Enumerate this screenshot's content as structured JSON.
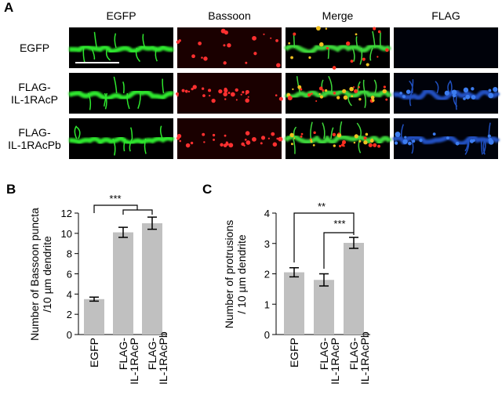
{
  "panel_a": {
    "label": "A",
    "columns": [
      "EGFP",
      "Bassoon",
      "Merge",
      "FLAG"
    ],
    "rows": [
      "EGFP",
      "FLAG-\nIL-1RAcP",
      "FLAG-\nIL-1RAcPb"
    ]
  },
  "chart_data": [
    {
      "type": "bar",
      "panel_label": "B",
      "y_label": "Number of Bassoon puncta\n/10 µm dendrite",
      "categories": [
        "EGFP",
        "FLAG-\nIL-1RAcP",
        "FLAG-\nIL-1RAcPb"
      ],
      "values": [
        3.5,
        10.1,
        11.0
      ],
      "errors": [
        0.2,
        0.5,
        0.6
      ],
      "color": "#c0c0c0",
      "ylim": [
        0,
        12
      ],
      "yticks": [
        0,
        2,
        4,
        6,
        8,
        10,
        12
      ],
      "annotations": [
        "***"
      ]
    },
    {
      "type": "bar",
      "panel_label": "C",
      "y_label": "Number of protrusions\n/ 10 µm dendrite",
      "categories": [
        "EGFP",
        "FLAG-\nIL-1RAcP",
        "FLAG-\nIL-1RAcPb"
      ],
      "values": [
        2.05,
        1.8,
        3.02
      ],
      "errors": [
        0.15,
        0.2,
        0.18
      ],
      "color": "#c0c0c0",
      "ylim": [
        0,
        4
      ],
      "yticks": [
        0,
        1,
        2,
        3,
        4
      ],
      "annotations": [
        "**",
        "***"
      ]
    }
  ]
}
